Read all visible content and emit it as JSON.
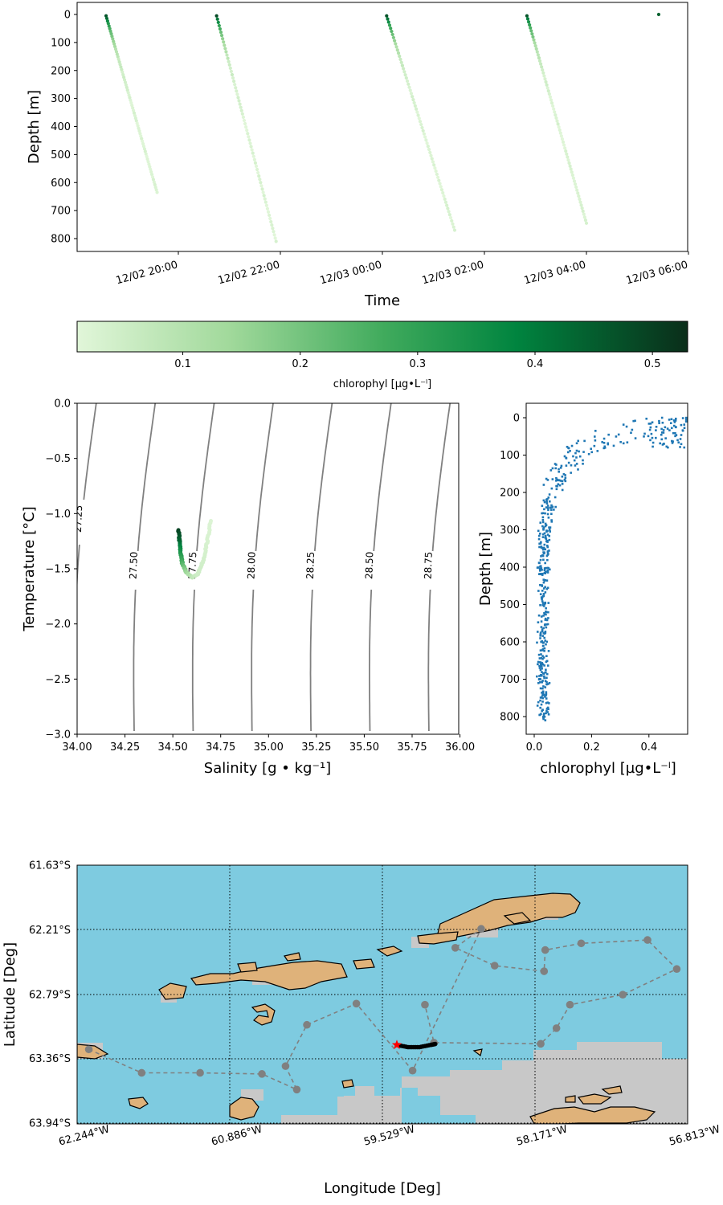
{
  "chart_data": [
    {
      "type": "scatter",
      "panel": "depth-time",
      "xlabel": "Time",
      "ylabel": "Depth [m]",
      "ylim": [
        0,
        850
      ],
      "y_inverted": true,
      "x_ticks": [
        "12/02 20:00",
        "12/02 22:00",
        "12/03 00:00",
        "12/03 02:00",
        "12/03 04:00",
        "12/03 06:00"
      ],
      "y_ticks": [
        0,
        100,
        200,
        300,
        400,
        500,
        600,
        700,
        800
      ],
      "profiles": [
        {
          "start_time": "12/02 18:35",
          "end_time": "12/02 19:35",
          "start_depth": 5,
          "end_depth": 635
        },
        {
          "start_time": "12/02 20:45",
          "end_time": "12/02 21:55",
          "start_depth": 5,
          "end_depth": 810
        },
        {
          "start_time": "12/03 00:05",
          "end_time": "12/03 01:25",
          "start_depth": 5,
          "end_depth": 770
        },
        {
          "start_time": "12/03 02:50",
          "end_time": "12/03 04:00",
          "start_depth": 5,
          "end_depth": 745
        },
        {
          "start_time": "12/03 05:25",
          "end_time": "12/03 05:25",
          "start_depth": 0,
          "end_depth": 0
        }
      ],
      "colorbar": {
        "label": "chlorophyl [µg•L⁻ˡ]",
        "ticks": [
          0.1,
          0.2,
          0.3,
          0.4,
          0.5
        ],
        "range": [
          0.01,
          0.53
        ],
        "colormap": [
          "#e1f6d9",
          "#a1d99b",
          "#41ab5d",
          "#00843f",
          "#0a2e1a"
        ]
      }
    },
    {
      "type": "scatter",
      "panel": "ts-diagram",
      "xlabel": "Salinity [g • kg⁻¹]",
      "ylabel": "Temperature [°C]",
      "xlim": [
        34.0,
        36.1
      ],
      "ylim": [
        -3.0,
        0.0
      ],
      "x_ticks": [
        "34.00",
        "34.25",
        "34.50",
        "34.75",
        "35.00",
        "35.25",
        "35.50",
        "35.75",
        "36.00"
      ],
      "y_ticks": [
        "0.0",
        "−0.5",
        "−1.0",
        "−1.5",
        "−2.0",
        "−2.5",
        "−3.0"
      ],
      "density_contours": [
        "27.25",
        "27.50",
        "27.75",
        "28.00",
        "28.25",
        "28.50",
        "28.75"
      ],
      "ts_points": [
        [
          34.53,
          -1.15,
          0.5
        ],
        [
          34.535,
          -1.25,
          0.45
        ],
        [
          34.54,
          -1.35,
          0.35
        ],
        [
          34.55,
          -1.45,
          0.25
        ],
        [
          34.57,
          -1.53,
          0.15
        ],
        [
          34.6,
          -1.58,
          0.08
        ],
        [
          34.63,
          -1.55,
          0.05
        ],
        [
          34.66,
          -1.42,
          0.04
        ],
        [
          34.68,
          -1.25,
          0.03
        ],
        [
          34.7,
          -1.05,
          0.02
        ]
      ]
    },
    {
      "type": "scatter",
      "panel": "chl-depth",
      "xlabel": "chlorophyl [µg•L⁻ˡ]",
      "ylabel": "Depth [m]",
      "xlim": [
        -0.03,
        0.55
      ],
      "ylim": [
        0,
        850
      ],
      "y_inverted": true,
      "x_ticks": [
        "0.0",
        "0.2",
        "0.4"
      ],
      "y_ticks": [
        0,
        100,
        200,
        300,
        400,
        500,
        600,
        700,
        800
      ],
      "series_color": "#1f77b4"
    },
    {
      "type": "scatter",
      "panel": "map",
      "xlabel": "Longitude [Deg]",
      "ylabel": "Latitude [Deg]",
      "x_ticks": [
        "62.244°W",
        "60.886°W",
        "59.529°W",
        "58.171°W",
        "56.813°W"
      ],
      "y_ticks": [
        "61.63°S",
        "62.21°S",
        "62.79°S",
        "63.36°S",
        "63.94°S"
      ],
      "ocean_color": "#7ecbe0",
      "land_color": "#dfb27a",
      "ice_color": "#c8c8c8",
      "waypoints": [
        [
          -62.14,
          -63.28
        ],
        [
          -61.67,
          -63.49
        ],
        [
          -61.15,
          -63.49
        ],
        [
          -60.6,
          -63.5
        ],
        [
          -60.29,
          -63.64
        ],
        [
          -60.39,
          -63.43
        ],
        [
          -60.2,
          -63.06
        ],
        [
          -59.76,
          -62.87
        ],
        [
          -59.26,
          -63.47
        ],
        [
          -58.65,
          -62.2
        ],
        [
          -58.88,
          -62.37
        ],
        [
          -58.53,
          -62.53
        ],
        [
          -58.09,
          -62.58
        ],
        [
          -58.08,
          -62.39
        ],
        [
          -57.76,
          -62.33
        ],
        [
          -57.17,
          -62.3
        ],
        [
          -56.91,
          -62.56
        ],
        [
          -57.39,
          -62.79
        ],
        [
          -57.86,
          -62.88
        ],
        [
          -57.98,
          -63.09
        ],
        [
          -58.12,
          -63.23
        ],
        [
          -59.07,
          -63.22
        ],
        [
          -59.15,
          -62.88
        ]
      ],
      "glider_start": [
        -59.4,
        -63.24
      ],
      "glider_track": [
        [
          -59.4,
          -63.24
        ],
        [
          -59.3,
          -63.26
        ],
        [
          -59.2,
          -63.26
        ],
        [
          -59.1,
          -63.24
        ],
        [
          -59.05,
          -63.23
        ]
      ]
    }
  ]
}
